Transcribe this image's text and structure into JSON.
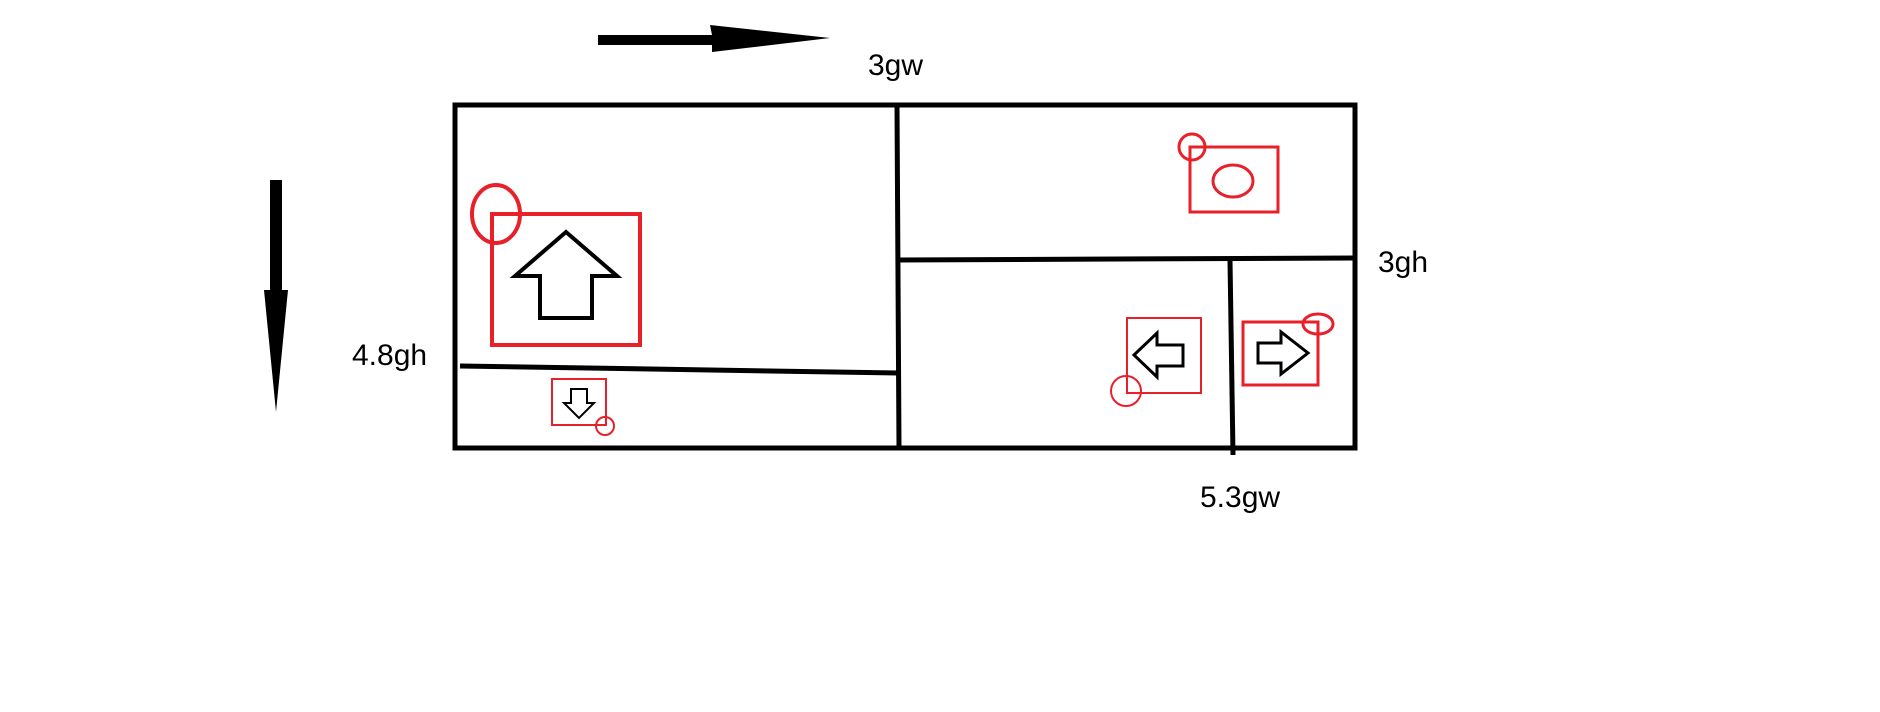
{
  "labels": {
    "top_split": "3gw",
    "right_split": "3gh",
    "left_split": "4.8gh",
    "bottom_split": "5.3gw"
  },
  "colors": {
    "line": "#000000",
    "marker": "#e8202a",
    "background": "#ffffff"
  },
  "icons": {
    "flow_right": "arrow-right-icon",
    "flow_down": "arrow-down-icon",
    "panel_up": "arrow-up-icon",
    "panel_down": "arrow-down-icon",
    "panel_left": "arrow-left-icon",
    "panel_right": "arrow-right-icon",
    "panel_circle": "circle-icon",
    "anchor": "anchor-circle-icon"
  }
}
